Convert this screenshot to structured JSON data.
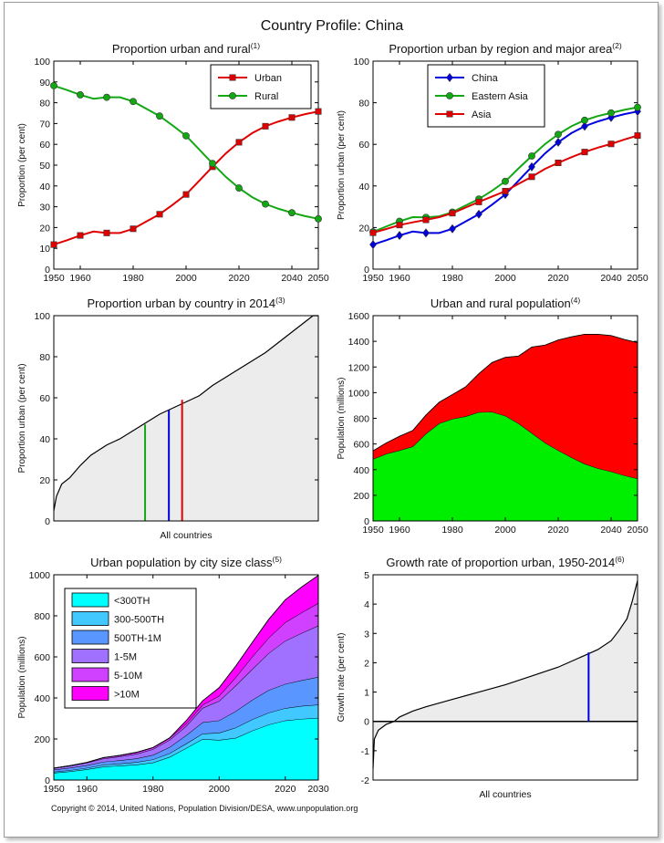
{
  "page": {
    "title": "Country Profile: China",
    "copyright": "Copyright © 2014, United Nations, Population Division/DESA, www.unpopulation.org"
  },
  "chart_data": [
    {
      "type": "line",
      "title": "Proportion urban and rural",
      "note": "(1)",
      "xlabel": "",
      "ylabel": "Proportion (per cent)",
      "xlim": [
        1950,
        2050
      ],
      "ylim": [
        0,
        100
      ],
      "xticks": [
        1950,
        1960,
        1980,
        2000,
        2020,
        2040,
        2050
      ],
      "yticks": [
        0,
        10,
        20,
        30,
        40,
        50,
        60,
        70,
        80,
        90,
        100
      ],
      "legend": "top-right",
      "series": [
        {
          "name": "Urban",
          "color": "#e00000",
          "marker": "square",
          "x": [
            1950,
            1955,
            1960,
            1965,
            1970,
            1975,
            1980,
            1985,
            1990,
            1995,
            2000,
            2005,
            2010,
            2015,
            2020,
            2025,
            2030,
            2035,
            2040,
            2045,
            2050
          ],
          "y": [
            11.8,
            13.9,
            16.2,
            18.1,
            17.4,
            17.4,
            19.4,
            22.9,
            26.4,
            31.0,
            35.9,
            42.5,
            49.2,
            55.6,
            61.0,
            65.4,
            68.7,
            71.0,
            72.9,
            74.5,
            75.8
          ],
          "marker_x": [
            1950,
            1960,
            1970,
            1980,
            1990,
            2000,
            2010,
            2020,
            2030,
            2040,
            2050
          ]
        },
        {
          "name": "Rural",
          "color": "#13a813",
          "marker": "circle",
          "x": [
            1950,
            1955,
            1960,
            1965,
            1970,
            1975,
            1980,
            1985,
            1990,
            1995,
            2000,
            2005,
            2010,
            2015,
            2020,
            2025,
            2030,
            2035,
            2040,
            2045,
            2050
          ],
          "y": [
            88.2,
            86.1,
            83.8,
            81.9,
            82.6,
            82.6,
            80.6,
            77.1,
            73.6,
            69.0,
            64.1,
            57.5,
            50.8,
            44.4,
            39.0,
            34.6,
            31.3,
            29.0,
            27.1,
            25.5,
            24.2
          ],
          "marker_x": [
            1950,
            1960,
            1970,
            1980,
            1990,
            2000,
            2010,
            2020,
            2030,
            2040,
            2050
          ]
        }
      ]
    },
    {
      "type": "line",
      "title": "Proportion urban by region and major area",
      "note": "(2)",
      "xlabel": "",
      "ylabel": "Proportion urban (per cent)",
      "xlim": [
        1950,
        2050
      ],
      "ylim": [
        0,
        100
      ],
      "xticks": [
        1950,
        1960,
        1980,
        2000,
        2020,
        2040,
        2050
      ],
      "yticks": [
        0,
        20,
        40,
        60,
        80,
        100
      ],
      "legend": "top-left",
      "series": [
        {
          "name": "China",
          "color": "#0000e0",
          "marker": "diamond",
          "x": [
            1950,
            1955,
            1960,
            1965,
            1970,
            1975,
            1980,
            1985,
            1990,
            1995,
            2000,
            2005,
            2010,
            2015,
            2020,
            2025,
            2030,
            2035,
            2040,
            2045,
            2050
          ],
          "y": [
            11.8,
            13.9,
            16.2,
            18.1,
            17.4,
            17.4,
            19.4,
            22.9,
            26.4,
            31.0,
            35.9,
            42.5,
            49.2,
            55.6,
            61.0,
            65.4,
            68.7,
            71.0,
            72.9,
            74.5,
            75.8
          ],
          "marker_x": [
            1950,
            1960,
            1970,
            1980,
            1990,
            2000,
            2010,
            2020,
            2030,
            2040,
            2050
          ]
        },
        {
          "name": "Eastern Asia",
          "color": "#13a813",
          "marker": "circle",
          "x": [
            1950,
            1955,
            1960,
            1965,
            1970,
            1975,
            1980,
            1985,
            1990,
            1995,
            2000,
            2005,
            2010,
            2015,
            2020,
            2025,
            2030,
            2035,
            2040,
            2045,
            2050
          ],
          "y": [
            17.9,
            20.5,
            23.0,
            25.0,
            24.9,
            25.4,
            27.4,
            30.6,
            33.7,
            37.7,
            42.2,
            48.4,
            54.4,
            60.1,
            64.8,
            68.7,
            71.6,
            73.6,
            75.1,
            76.6,
            77.8
          ],
          "marker_x": [
            1950,
            1960,
            1970,
            1980,
            1990,
            2000,
            2010,
            2020,
            2030,
            2040,
            2050
          ]
        },
        {
          "name": "Asia",
          "color": "#e00000",
          "marker": "square",
          "x": [
            1950,
            1955,
            1960,
            1965,
            1970,
            1975,
            1980,
            1985,
            1990,
            1995,
            2000,
            2005,
            2010,
            2015,
            2020,
            2025,
            2030,
            2035,
            2040,
            2045,
            2050
          ],
          "y": [
            17.5,
            19.3,
            21.2,
            22.5,
            23.7,
            25.0,
            26.9,
            29.6,
            32.3,
            34.9,
            37.5,
            41.0,
            44.4,
            48.2,
            51.1,
            53.8,
            56.3,
            58.4,
            60.2,
            62.3,
            64.2
          ],
          "marker_x": [
            1950,
            1960,
            1970,
            1980,
            1990,
            2000,
            2010,
            2020,
            2030,
            2040,
            2050
          ]
        }
      ]
    },
    {
      "type": "area",
      "title": "Proportion urban by country in 2014",
      "note": "(3)",
      "xlabel": "All countries",
      "ylabel": "Proportion urban (per cent)",
      "ylim": [
        0,
        100
      ],
      "yticks": [
        0,
        20,
        40,
        60,
        80,
        100
      ],
      "curve_x": [
        0,
        0.01,
        0.03,
        0.06,
        0.1,
        0.14,
        0.2,
        0.25,
        0.3,
        0.35,
        0.4,
        0.45,
        0.5,
        0.55,
        0.6,
        0.65,
        0.7,
        0.75,
        0.8,
        0.85,
        0.9,
        0.95,
        0.98,
        1.0
      ],
      "curve_y": [
        5,
        12,
        18,
        21,
        27,
        32,
        37,
        40,
        44,
        48,
        52,
        55,
        58,
        61,
        66,
        70,
        74,
        78,
        82,
        87,
        92,
        97,
        100,
        100
      ],
      "markers": [
        {
          "x": 0.345,
          "y": 47,
          "color": "#13a813"
        },
        {
          "x": 0.435,
          "y": 54,
          "color": "#0000e0"
        },
        {
          "x": 0.485,
          "y": 59,
          "color": "#e00000"
        }
      ]
    },
    {
      "type": "area",
      "title": "Urban and rural population",
      "note": "(4)",
      "xlabel": "",
      "ylabel": "Population (millions)",
      "xlim": [
        1950,
        2050
      ],
      "ylim": [
        0,
        1600
      ],
      "xticks": [
        1950,
        1960,
        1980,
        2000,
        2020,
        2040,
        2050
      ],
      "yticks": [
        0,
        200,
        400,
        600,
        800,
        1000,
        1200,
        1400,
        1600
      ],
      "x": [
        1950,
        1955,
        1960,
        1965,
        1970,
        1975,
        1980,
        1985,
        1990,
        1995,
        2000,
        2005,
        2010,
        2015,
        2020,
        2025,
        2030,
        2035,
        2040,
        2045,
        2050
      ],
      "series": [
        {
          "name": "Rural",
          "color": "#00ee00",
          "values": [
            482,
            523,
            550,
            580,
            680,
            760,
            795,
            815,
            848,
            850,
            820,
            760,
            685,
            610,
            550,
            495,
            445,
            410,
            385,
            355,
            330
          ]
        },
        {
          "name": "Urban",
          "color": "#ff0000",
          "values": [
            65,
            85,
            110,
            125,
            145,
            165,
            190,
            230,
            300,
            385,
            455,
            525,
            670,
            760,
            860,
            940,
            1010,
            1045,
            1060,
            1060,
            1060
          ]
        }
      ]
    },
    {
      "type": "area",
      "title": "Urban population by city size class",
      "note": "(5)",
      "xlabel": "",
      "ylabel": "Population (millions)",
      "xlim": [
        1950,
        2030
      ],
      "ylim": [
        0,
        1000
      ],
      "xticks": [
        1950,
        1960,
        1980,
        2000,
        2020,
        2030
      ],
      "yticks": [
        0,
        200,
        400,
        600,
        800,
        1000
      ],
      "legend": "top-left",
      "x": [
        1950,
        1955,
        1960,
        1965,
        1970,
        1975,
        1980,
        1985,
        1990,
        1995,
        2000,
        2005,
        2010,
        2015,
        2020,
        2025,
        2030
      ],
      "series": [
        {
          "name": "<300TH",
          "color": "#00ffff",
          "values": [
            35,
            42,
            52,
            65,
            70,
            75,
            85,
            112,
            155,
            200,
            195,
            205,
            240,
            270,
            290,
            298,
            302
          ]
        },
        {
          "name": "300-500TH",
          "color": "#40c8ff",
          "values": [
            5,
            6,
            7,
            9,
            10,
            12,
            15,
            18,
            22,
            26,
            35,
            50,
            55,
            58,
            60,
            63,
            65
          ]
        },
        {
          "name": "500TH-1M",
          "color": "#5a96ff",
          "values": [
            10,
            12,
            13,
            15,
            16,
            18,
            22,
            30,
            40,
            55,
            60,
            80,
            95,
            110,
            118,
            125,
            135
          ]
        },
        {
          "name": "1-5M",
          "color": "#a070ff",
          "values": [
            8,
            10,
            12,
            15,
            18,
            22,
            28,
            35,
            45,
            70,
            95,
            125,
            150,
            180,
            210,
            230,
            250
          ]
        },
        {
          "name": "5-10M",
          "color": "#d040ff",
          "values": [
            0,
            0,
            2,
            5,
            6,
            8,
            8,
            10,
            12,
            15,
            25,
            40,
            60,
            75,
            90,
            100,
            110
          ]
        },
        {
          "name": ">10M",
          "color": "#ff00ff",
          "values": [
            0,
            0,
            0,
            0,
            0,
            0,
            0,
            0,
            15,
            20,
            40,
            55,
            70,
            90,
            110,
            125,
            135
          ]
        }
      ]
    },
    {
      "type": "area",
      "title": "Growth rate of proportion urban, 1950-2014",
      "note": "(6)",
      "xlabel": "All countries",
      "ylabel": "Growth rate (per cent)",
      "ylim": [
        -2,
        5
      ],
      "yticks": [
        -2,
        -1,
        0,
        1,
        2,
        3,
        4,
        5
      ],
      "curve_x": [
        0,
        0.005,
        0.02,
        0.05,
        0.08,
        0.1,
        0.15,
        0.2,
        0.3,
        0.4,
        0.5,
        0.6,
        0.7,
        0.8,
        0.85,
        0.9,
        0.93,
        0.96,
        0.98,
        1.0
      ],
      "curve_y": [
        -1.6,
        -0.6,
        -0.3,
        -0.1,
        0.0,
        0.15,
        0.35,
        0.5,
        0.75,
        1.0,
        1.25,
        1.55,
        1.85,
        2.25,
        2.45,
        2.75,
        3.1,
        3.5,
        4.1,
        4.8
      ],
      "markers": [
        {
          "x": 0.815,
          "y": 2.35,
          "color": "#0000e0"
        }
      ]
    }
  ]
}
